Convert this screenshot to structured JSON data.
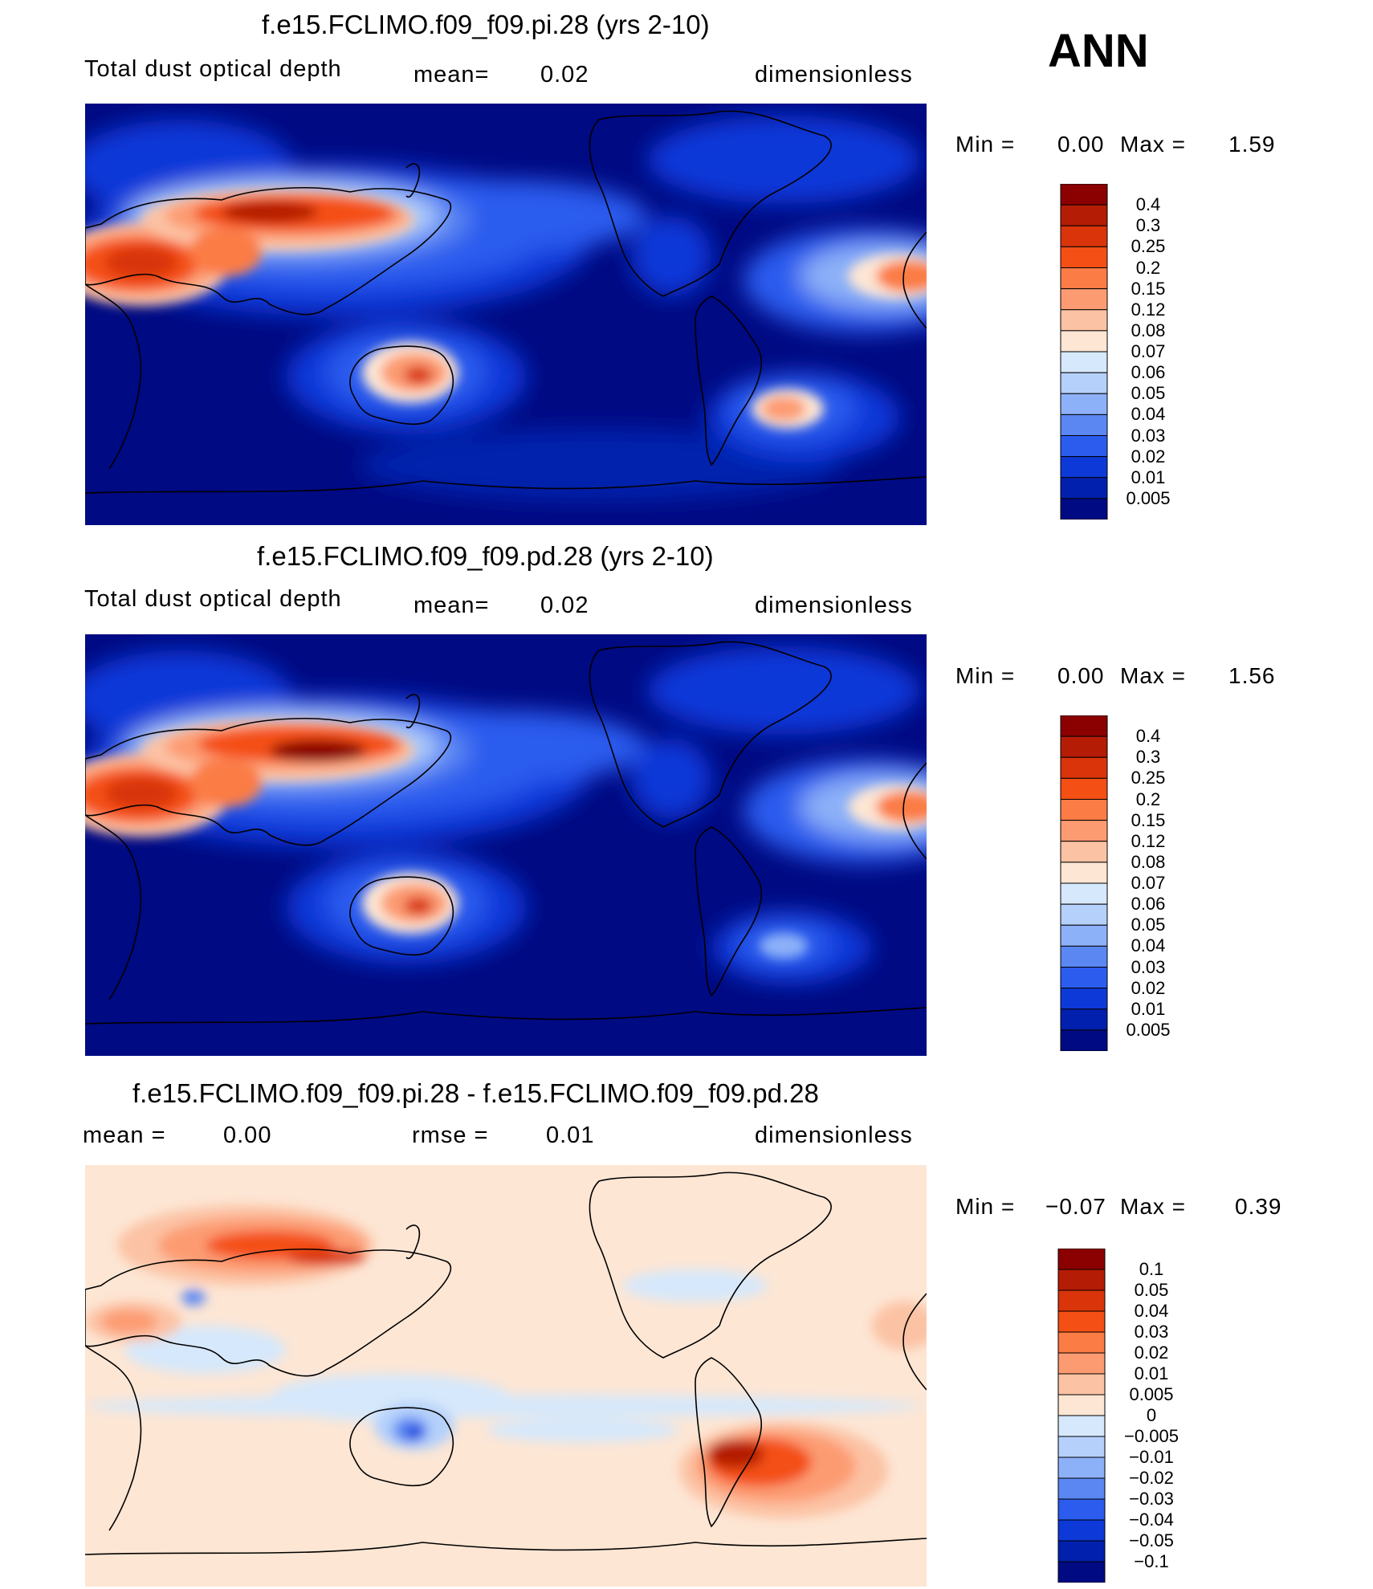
{
  "season": "ANN",
  "panels": [
    {
      "title": "f.e15.FCLIMO.f09_f09.pi.28 (yrs 2-10)",
      "variable": "Total dust optical depth",
      "mean_label": "mean=",
      "mean_value": "0.02",
      "units": "dimensionless",
      "min_label": "Min  =",
      "min_value": "0.00",
      "max_label": "Max  =",
      "max_value": "1.59",
      "colorbar_levels": [
        "0.4",
        "0.3",
        "0.25",
        "0.2",
        "0.15",
        "0.12",
        "0.08",
        "0.07",
        "0.06",
        "0.05",
        "0.04",
        "0.03",
        "0.02",
        "0.01",
        "0.005"
      ]
    },
    {
      "title": "f.e15.FCLIMO.f09_f09.pd.28 (yrs 2-10)",
      "variable": "Total dust optical depth",
      "mean_label": "mean=",
      "mean_value": "0.02",
      "units": "dimensionless",
      "min_label": "Min  =",
      "min_value": "0.00",
      "max_label": "Max  =",
      "max_value": "1.56",
      "colorbar_levels": [
        "0.4",
        "0.3",
        "0.25",
        "0.2",
        "0.15",
        "0.12",
        "0.08",
        "0.07",
        "0.06",
        "0.05",
        "0.04",
        "0.03",
        "0.02",
        "0.01",
        "0.005"
      ]
    },
    {
      "title": "f.e15.FCLIMO.f09_f09.pi.28 - f.e15.FCLIMO.f09_f09.pd.28",
      "mean_label": "mean  =",
      "mean_value": "0.00",
      "rmse_label": "rmse  =",
      "rmse_value": "0.01",
      "units": "dimensionless",
      "min_label": "Min  =",
      "min_value": "−0.07",
      "max_label": "Max  =",
      "max_value": "0.39",
      "colorbar_levels": [
        "0.1",
        "0.05",
        "0.04",
        "0.03",
        "0.02",
        "0.01",
        "0.005",
        "0",
        "−0.005",
        "−0.01",
        "−0.02",
        "−0.03",
        "−0.04",
        "−0.05",
        "−0.1"
      ]
    }
  ],
  "colors": {
    "seq_high_to_low": [
      "#8b0000",
      "#b51c05",
      "#d9340a",
      "#f44f14",
      "#fb7c45",
      "#fc9b72",
      "#fcc2a4",
      "#fde6d4",
      "#d6e8fb",
      "#b4d0fb",
      "#8db1f8",
      "#5b87f3",
      "#2b5cee",
      "#0d39d8",
      "#0020ad",
      "#000a83"
    ],
    "div_high_to_low": [
      "#8b0000",
      "#b51c05",
      "#d9340a",
      "#f44f14",
      "#fb7c45",
      "#fc9b72",
      "#fcc2a4",
      "#fde6d4",
      "#d6e8fb",
      "#b4d0fb",
      "#8db1f8",
      "#5b87f3",
      "#2b5cee",
      "#0d39d8",
      "#0020ad",
      "#000a83"
    ],
    "ocean_low": "#000a83",
    "diff_background": "#fde6d4"
  }
}
